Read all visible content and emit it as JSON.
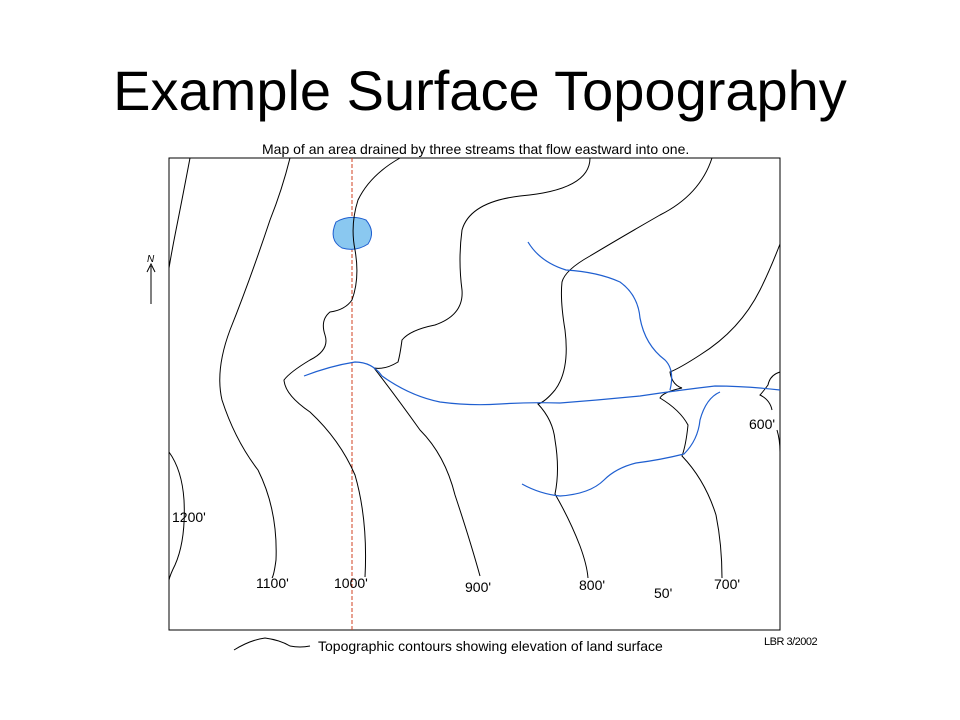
{
  "title": "Example Surface Topography",
  "map": {
    "caption": "Map of an area drained by three streams that flow eastward into one.",
    "north_label": "N",
    "contour_labels": {
      "c1200": "1200'",
      "c1100": "1100'",
      "c1000": "1000'",
      "c900": "900'",
      "c800": "800'",
      "c700": "700'",
      "c600": "600'",
      "interval": "50'"
    },
    "colors": {
      "contour": "#000000",
      "stream": "#1f5fd0",
      "lake_fill": "#8ac8f0",
      "section_line": "#d04020"
    }
  },
  "legend": {
    "text": "Topographic contours showing elevation of land surface"
  },
  "credit": "LBR 3/2002"
}
